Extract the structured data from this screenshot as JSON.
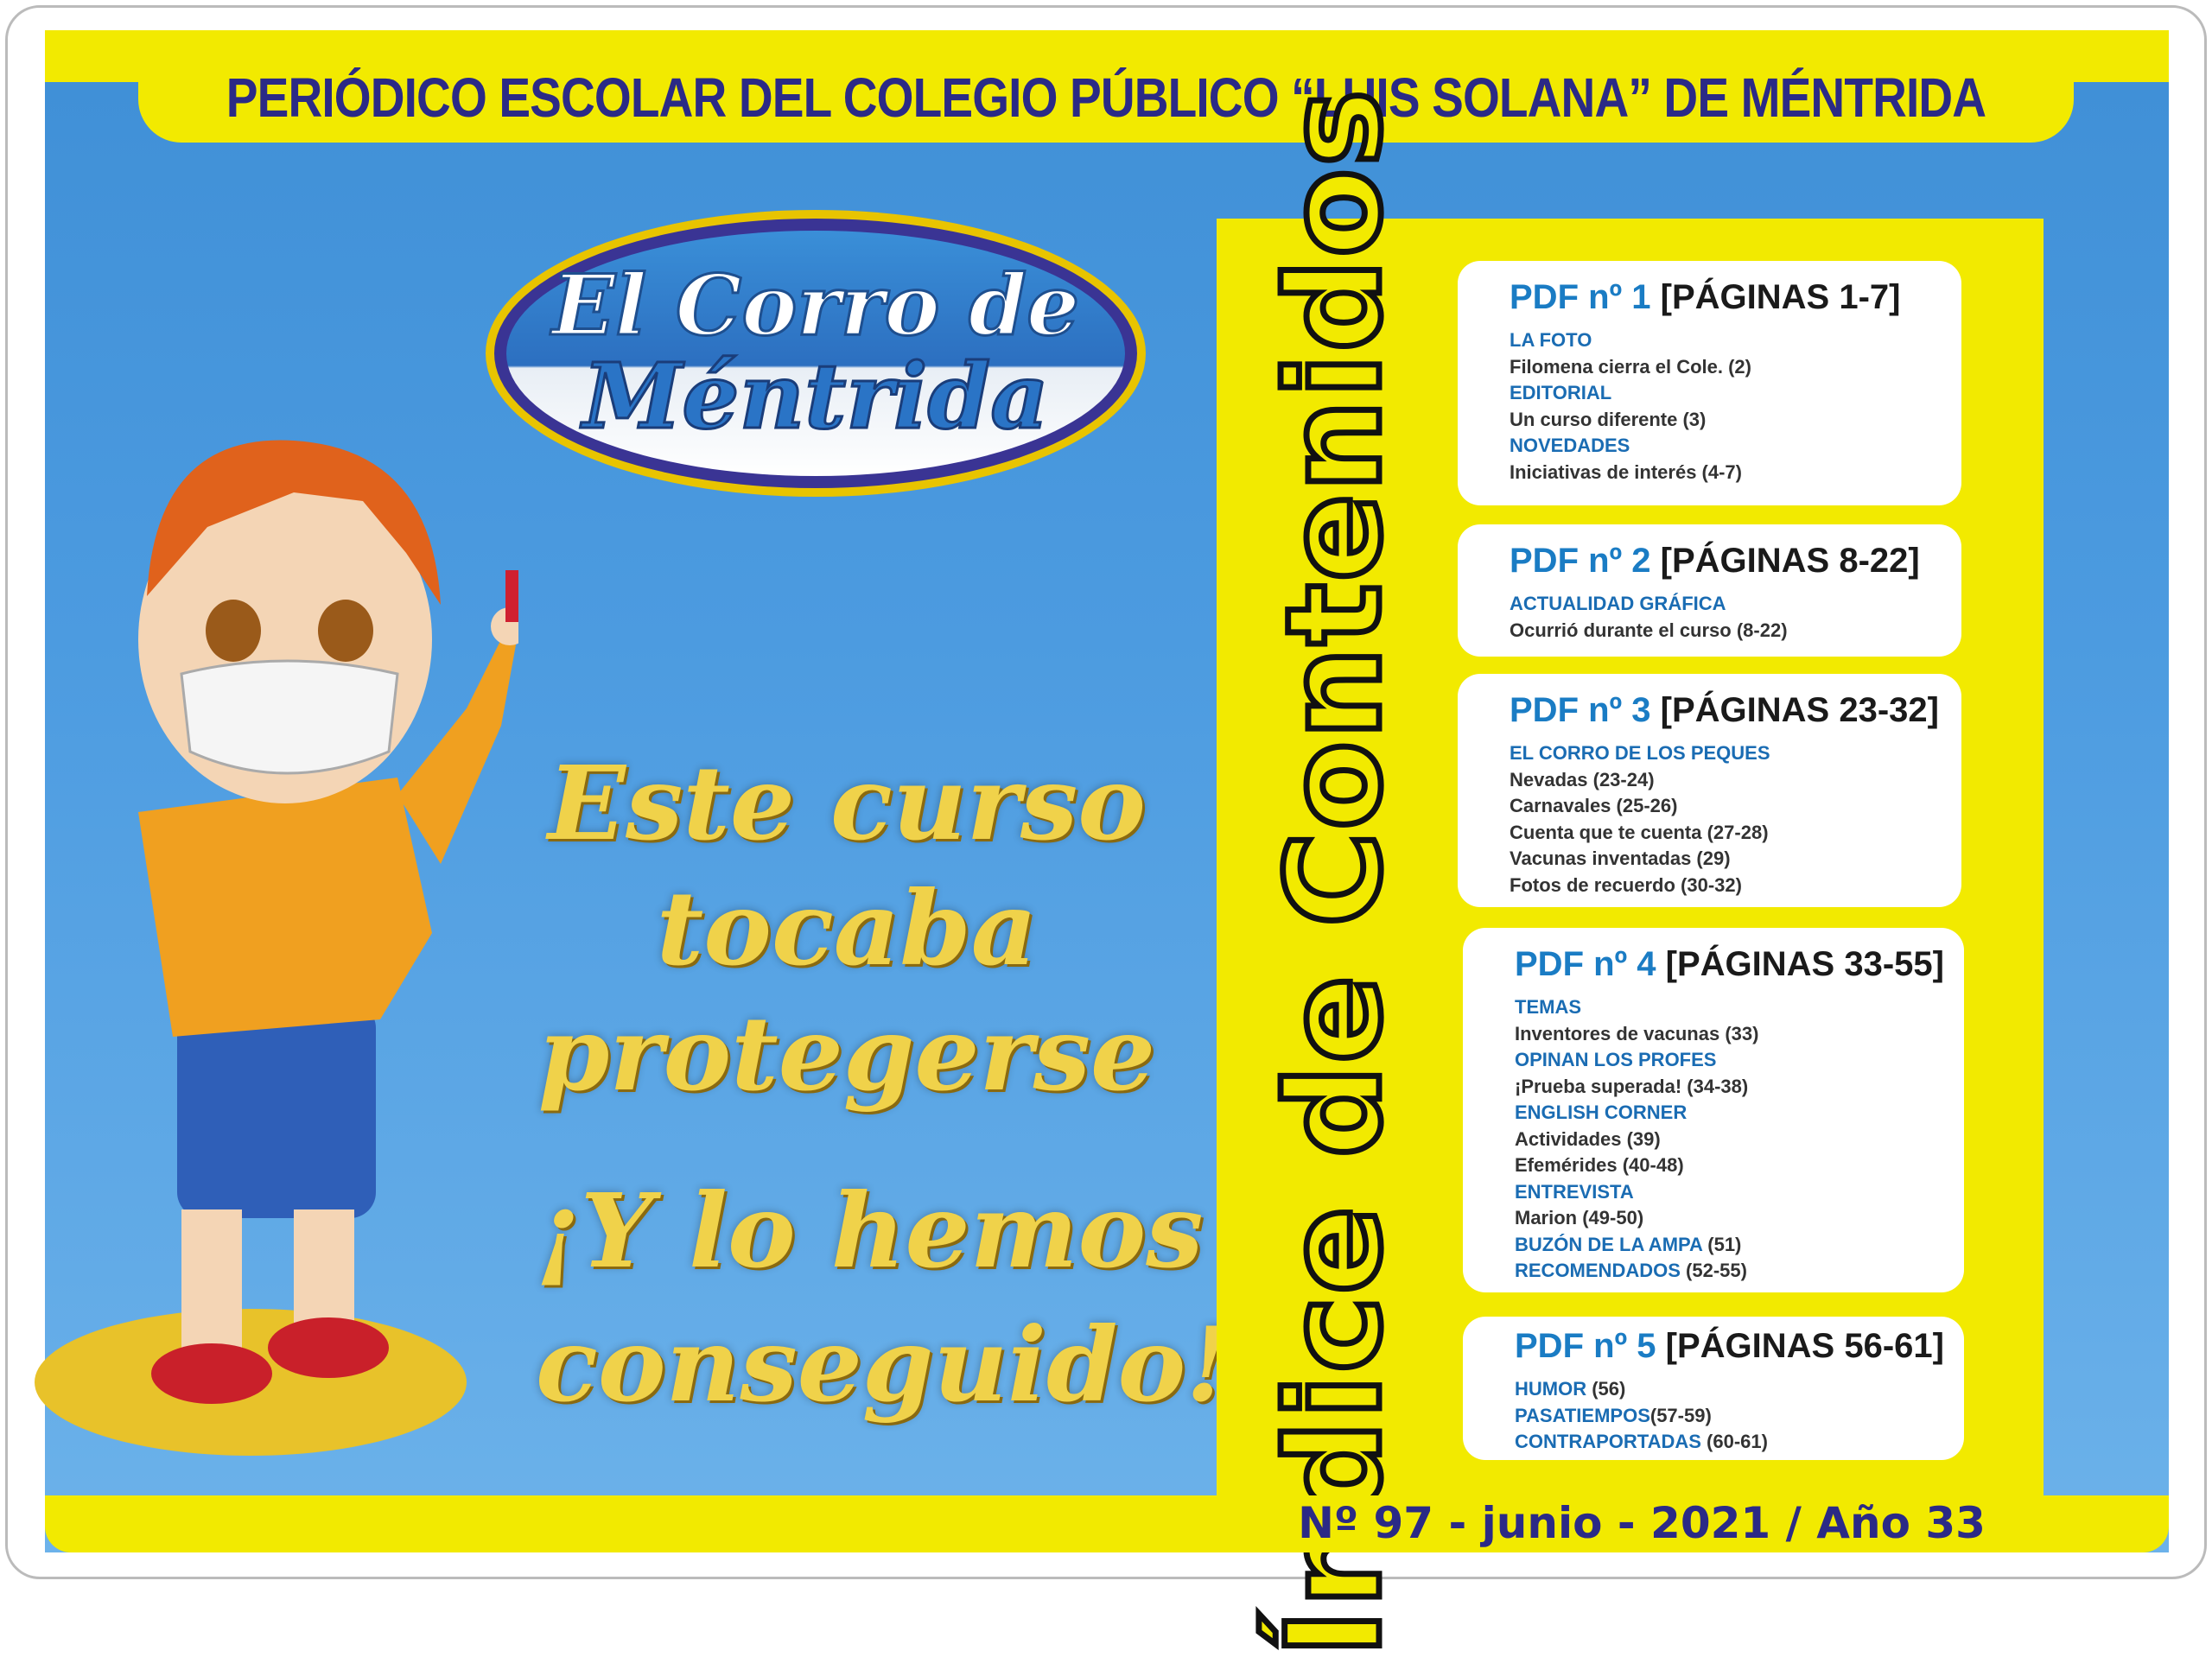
{
  "header": {
    "title": "PERIÓDICO ESCOLAR DEL COLEGIO PÚBLICO “LUIS SOLANA” DE MÉNTRIDA"
  },
  "logo": {
    "line1": "El Corro de",
    "line2": "Méntrida"
  },
  "slogan": [
    "Este curso",
    "tocaba",
    "protegerse",
    "¡Y lo hemos",
    "conseguido!"
  ],
  "index": {
    "title": "Índice de Contenidos",
    "sections": [
      {
        "pdf": "PDF nº 1",
        "pages": "[PÁGINAS 1-7]",
        "lines": [
          {
            "s": "LA FOTO"
          },
          {
            "t": "Filomena cierra el Cole. (2)"
          },
          {
            "s": "EDITORIAL"
          },
          {
            "t": "Un curso diferente (3)"
          },
          {
            "s": "NOVEDADES"
          },
          {
            "t": "Iniciativas de interés (4-7)"
          }
        ]
      },
      {
        "pdf": "PDF nº 2",
        "pages": "[PÁGINAS 8-22]",
        "lines": [
          {
            "s": "ACTUALIDAD GRÁFICA"
          },
          {
            "t": "Ocurrió durante el curso (8-22)"
          }
        ]
      },
      {
        "pdf": "PDF nº 3",
        "pages": "[PÁGINAS 23-32]",
        "lines": [
          {
            "s": "EL CORRO DE LOS PEQUES"
          },
          {
            "t": "Nevadas (23-24)"
          },
          {
            "t": "Carnavales (25-26)"
          },
          {
            "t": "Cuenta que te cuenta (27-28)"
          },
          {
            "t": "Vacunas inventadas (29)"
          },
          {
            "t": "Fotos de recuerdo (30-32)"
          }
        ]
      },
      {
        "pdf": "PDF nº 4",
        "pages": "[PÁGINAS 33-55]",
        "lines": [
          {
            "s": "TEMAS"
          },
          {
            "t": "Inventores de vacunas (33)"
          },
          {
            "s": "OPINAN LOS PROFES"
          },
          {
            "t": "¡Prueba superada! (34-38)"
          },
          {
            "s": "ENGLISH CORNER"
          },
          {
            "t": "Actividades (39)"
          },
          {
            "t": "Efemérides (40-48)"
          },
          {
            "s": "ENTREVISTA"
          },
          {
            "t": "Marion (49-50)"
          },
          {
            "s": "BUZÓN DE LA AMPA",
            "t": " (51)"
          },
          {
            "s": "RECOMENDADOS",
            "t": " (52-55)"
          }
        ]
      },
      {
        "pdf": "PDF nº 5",
        "pages": "[PÁGINAS 56-61]",
        "lines": [
          {
            "s": "HUMOR",
            "t": " (56)"
          },
          {
            "s": "PASATIEMPOS",
            "t": "(57-59)"
          },
          {
            "s": "CONTRAPORTADAS",
            "t": " (60-61)"
          }
        ]
      }
    ]
  },
  "footer": {
    "issue": "Nº 97 - junio - 2021 / Año 33"
  },
  "colors": {
    "yellow": "#f2ea00",
    "navy": "#2b2a86",
    "blue": "#1a7cc4",
    "sky": "#4c9be0"
  }
}
